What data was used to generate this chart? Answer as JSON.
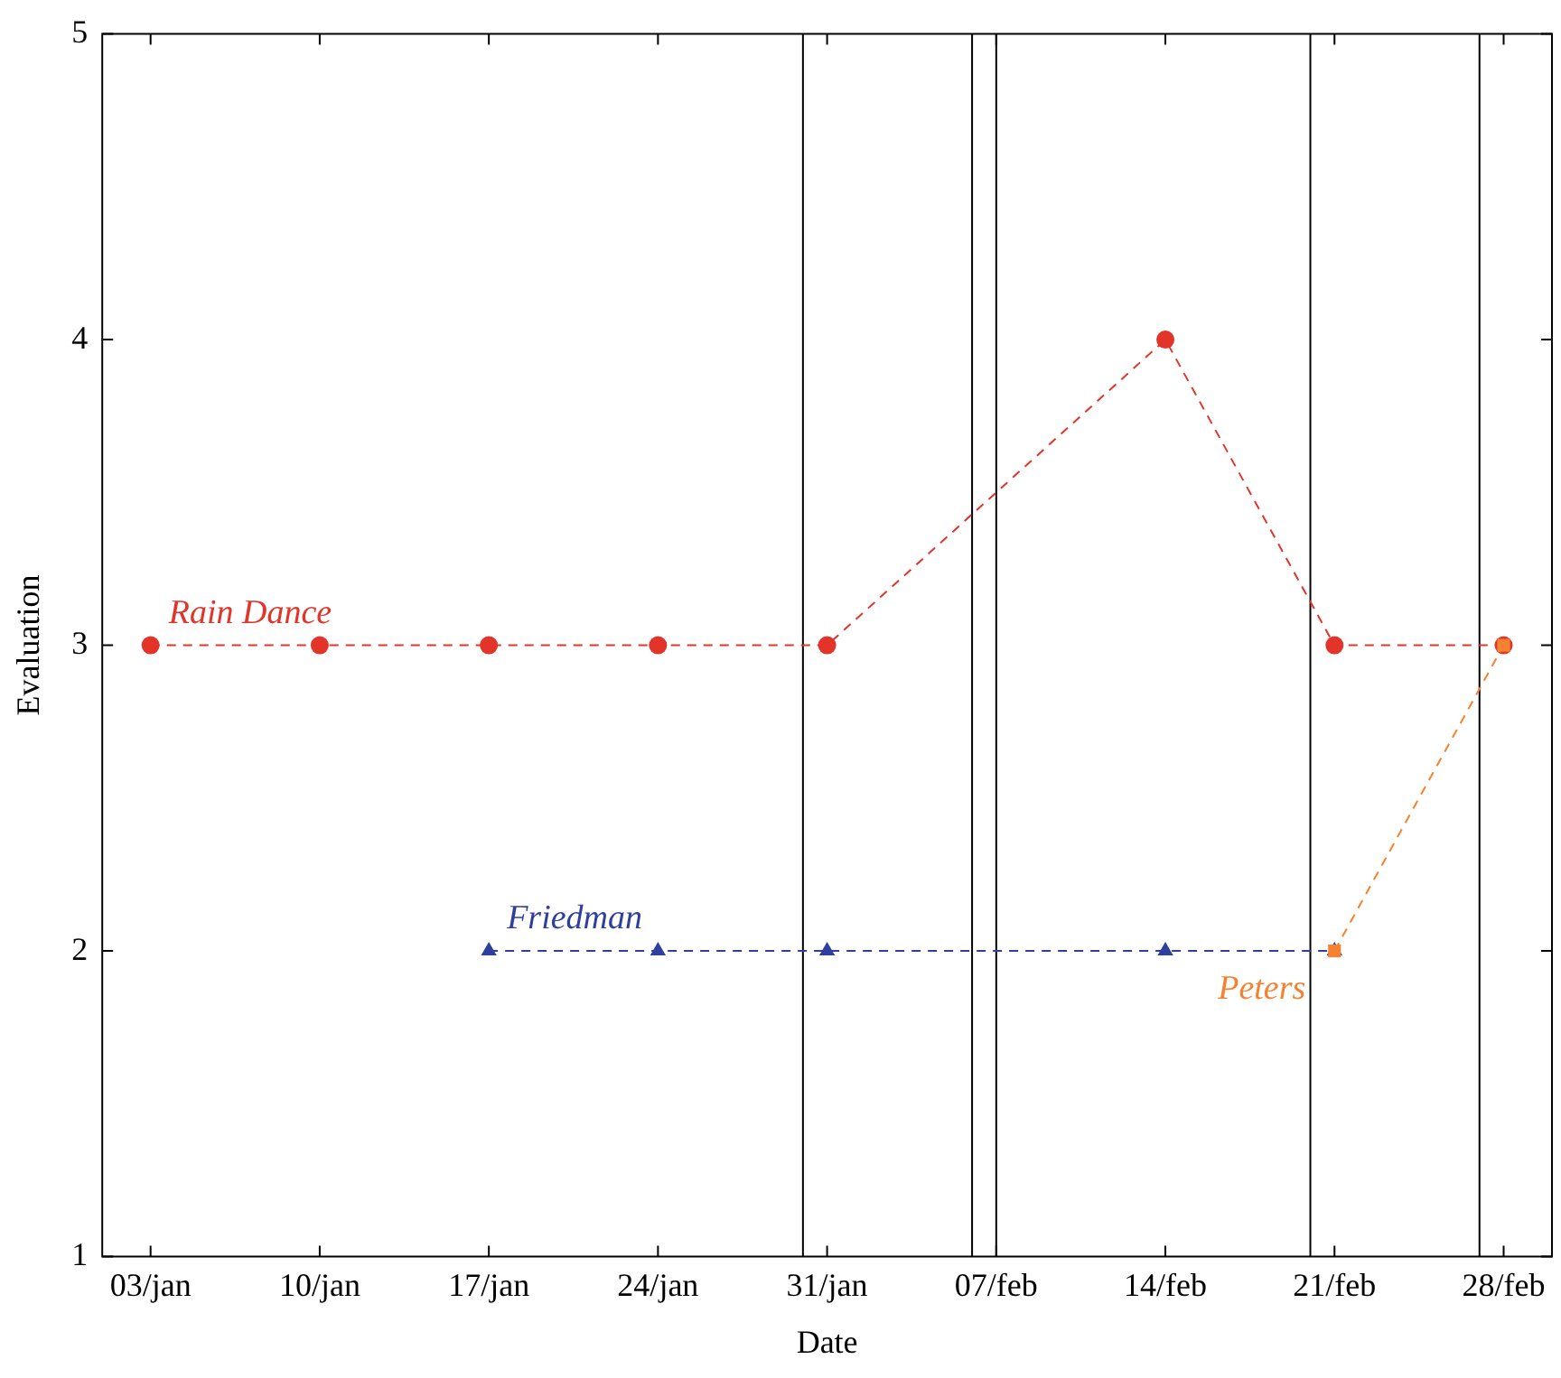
{
  "chart_data": {
    "type": "line",
    "xlabel": "Date",
    "ylabel": "Evaluation",
    "xlim": [
      "--01-01",
      "--03-02"
    ],
    "xticks": [
      {
        "value": "--01-03",
        "label": "03/jan"
      },
      {
        "value": "--01-10",
        "label": "10/jan"
      },
      {
        "value": "--01-17",
        "label": "17/jan"
      },
      {
        "value": "--01-24",
        "label": "24/jan"
      },
      {
        "value": "--01-31",
        "label": "31/jan"
      },
      {
        "value": "--02-07",
        "label": "07/feb"
      },
      {
        "value": "--02-14",
        "label": "14/feb"
      },
      {
        "value": "--02-21",
        "label": "21/feb"
      },
      {
        "value": "--02-28",
        "label": "28/feb"
      }
    ],
    "ylim": [
      1,
      5
    ],
    "yticks": [
      1,
      2,
      3,
      4,
      5
    ],
    "grid": false,
    "legend": false,
    "line_style": "dashed",
    "series": [
      {
        "name": "Rain Dance",
        "color": "#e3342a",
        "marker": "circle",
        "x": [
          "--01-03",
          "--01-10",
          "--01-17",
          "--01-24",
          "--01-31",
          "--02-14",
          "--02-21",
          "--02-28"
        ],
        "values": [
          3,
          3,
          3,
          3,
          3,
          4,
          3,
          3
        ]
      },
      {
        "name": "Friedman",
        "color": "#2e3f9e",
        "marker": "triangle",
        "x": [
          "--01-17",
          "--01-24",
          "--01-31",
          "--02-14",
          "--02-21"
        ],
        "values": [
          2,
          2,
          2,
          2,
          2
        ]
      },
      {
        "name": "Peters",
        "color": "#f58231",
        "marker": "square",
        "x": [
          "--02-21",
          "--02-28"
        ],
        "values": [
          2,
          3
        ]
      }
    ],
    "ref_lines": [
      {
        "axis": "x",
        "value": "--01-30",
        "color": "#000000"
      },
      {
        "axis": "x",
        "value": "--02-06",
        "color": "#000000"
      },
      {
        "axis": "x",
        "value": "--02-07",
        "color": "#000000"
      },
      {
        "axis": "x",
        "value": "--02-20",
        "color": "#000000"
      },
      {
        "axis": "x",
        "value": "--02-27",
        "color": "#000000"
      }
    ]
  }
}
